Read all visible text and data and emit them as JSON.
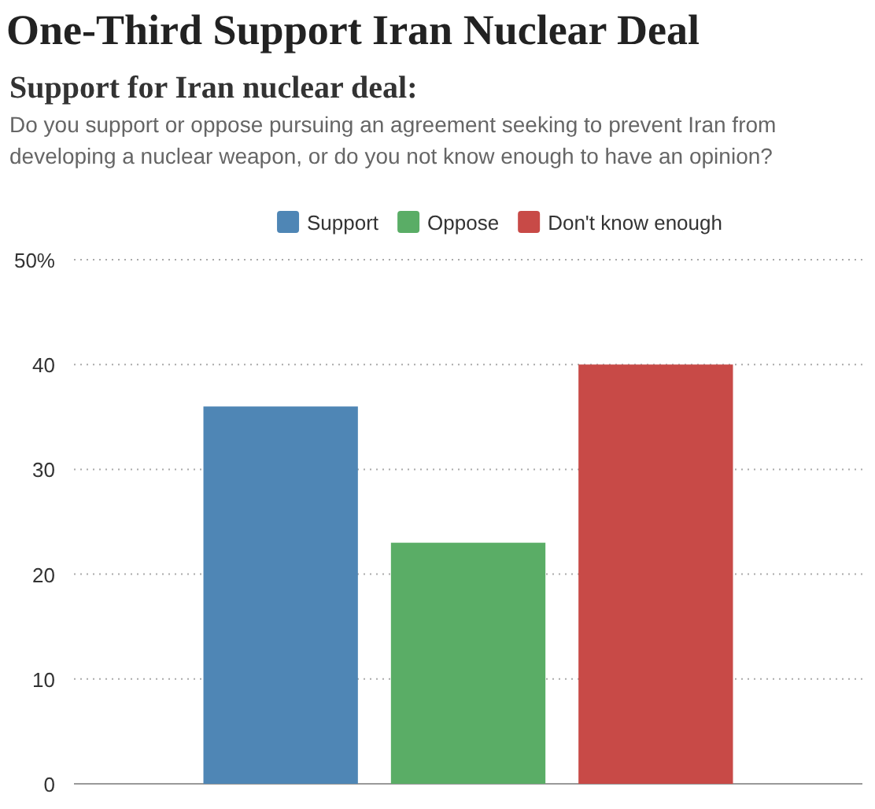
{
  "chart_data": {
    "type": "bar",
    "title": "One-Third Support Iran Nuclear Deal",
    "subtitle": "Support for Iran nuclear deal:",
    "annotations": [
      "Do you support or oppose pursuing an agreement seeking to prevent Iran from developing a nuclear weapon, or do you not know enough to have an opinion?"
    ],
    "categories": [
      null
    ],
    "series": [
      {
        "name": "Support",
        "color": "#4f86b5",
        "values": [
          36
        ]
      },
      {
        "name": "Oppose",
        "color": "#5aad66",
        "values": [
          23
        ]
      },
      {
        "name": "Don't know enough",
        "color": "#c84a47",
        "values": [
          40
        ]
      }
    ],
    "ylim": [
      0,
      50
    ],
    "yticks": [
      0,
      10,
      20,
      30,
      40,
      {
        "value": 50,
        "label": "50%"
      }
    ],
    "grid": "y",
    "legend": "top"
  }
}
